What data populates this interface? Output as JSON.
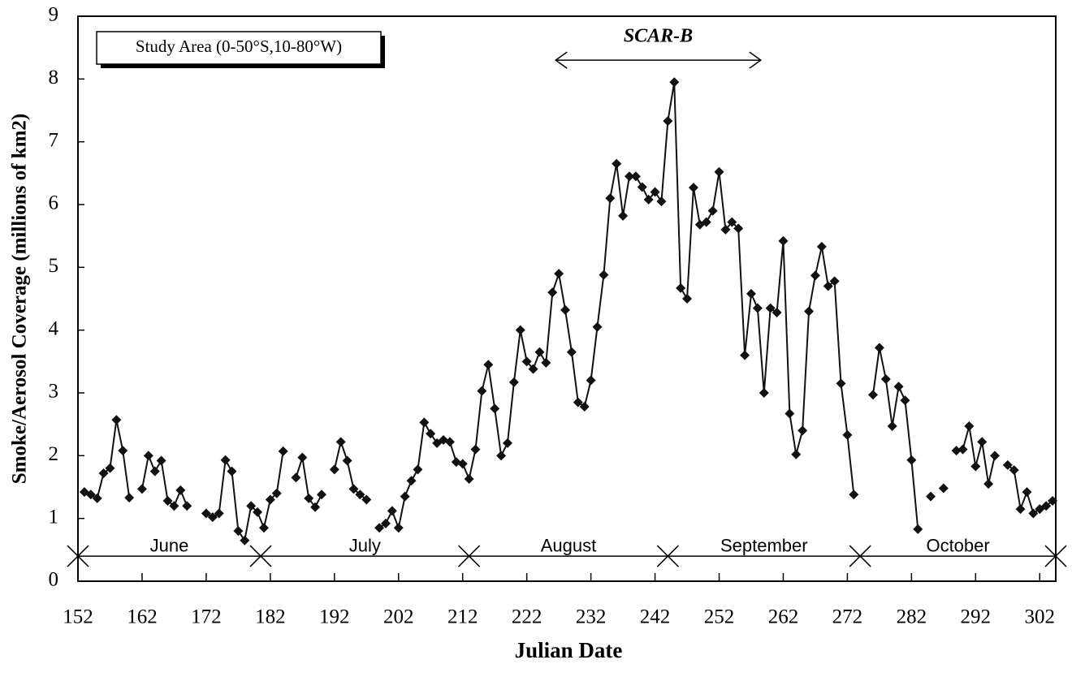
{
  "chart_data": {
    "type": "line",
    "x_label": "Julian Date",
    "y_label": "Smoke/Aerosol Coverage (millions of km2)",
    "inset_label": "Study Area (0-50°S,10-80°W)",
    "color": "#111111",
    "xlim": [
      152,
      304.5
    ],
    "ylim": [
      0,
      9
    ],
    "xticks": [
      152,
      162,
      172,
      182,
      192,
      202,
      212,
      222,
      232,
      242,
      252,
      262,
      272,
      282,
      292,
      302
    ],
    "yticks": [
      0,
      1,
      2,
      3,
      4,
      5,
      6,
      7,
      8,
      9
    ],
    "grid": false,
    "x": [
      153,
      154,
      155,
      156,
      157,
      158,
      159,
      160,
      161,
      162,
      163,
      164,
      165,
      166,
      167,
      168,
      169,
      170,
      171,
      172,
      173,
      174,
      175,
      176,
      177,
      178,
      179,
      180,
      181,
      182,
      183,
      184,
      185,
      186,
      187,
      188,
      189,
      190,
      191,
      192,
      193,
      194,
      195,
      196,
      197,
      198,
      199,
      200,
      201,
      202,
      203,
      204,
      205,
      206,
      207,
      208,
      209,
      210,
      211,
      212,
      213,
      214,
      215,
      216,
      217,
      218,
      219,
      220,
      221,
      222,
      223,
      224,
      225,
      226,
      227,
      228,
      229,
      230,
      231,
      232,
      233,
      234,
      235,
      236,
      237,
      238,
      239,
      240,
      241,
      242,
      243,
      244,
      245,
      246,
      247,
      248,
      249,
      250,
      251,
      252,
      253,
      254,
      255,
      256,
      257,
      258,
      259,
      260,
      261,
      262,
      263,
      264,
      265,
      266,
      267,
      268,
      269,
      270,
      271,
      272,
      273,
      274,
      275,
      276,
      277,
      278,
      279,
      280,
      281,
      282,
      283,
      284,
      285,
      286,
      287,
      288,
      289,
      290,
      291,
      292,
      293,
      294,
      295,
      296,
      297,
      298,
      299,
      300,
      301,
      302,
      303,
      304
    ],
    "values": [
      1.42,
      1.38,
      1.32,
      1.72,
      1.8,
      2.57,
      2.08,
      1.33,
      null,
      1.47,
      2.0,
      1.75,
      1.92,
      1.28,
      1.2,
      1.45,
      1.2,
      null,
      null,
      1.08,
      1.02,
      1.08,
      1.93,
      1.75,
      0.8,
      0.65,
      1.2,
      1.1,
      0.85,
      1.3,
      1.4,
      2.07,
      null,
      1.65,
      1.97,
      1.32,
      1.18,
      1.38,
      null,
      1.78,
      2.22,
      1.92,
      1.47,
      1.38,
      1.3,
      null,
      0.85,
      0.92,
      1.12,
      0.85,
      1.35,
      1.6,
      1.78,
      2.53,
      2.35,
      2.2,
      2.25,
      2.22,
      1.9,
      1.87,
      1.63,
      2.1,
      3.03,
      3.45,
      2.75,
      2.0,
      2.2,
      3.17,
      4.0,
      3.5,
      3.38,
      3.65,
      3.48,
      4.6,
      4.9,
      4.32,
      3.65,
      2.85,
      2.78,
      3.2,
      4.05,
      4.88,
      6.1,
      6.65,
      5.82,
      6.45,
      6.45,
      6.28,
      6.08,
      6.2,
      6.05,
      7.33,
      7.95,
      4.67,
      4.5,
      6.27,
      5.68,
      5.72,
      5.9,
      6.52,
      5.6,
      5.72,
      5.62,
      3.6,
      4.58,
      4.35,
      3.0,
      4.35,
      4.28,
      5.42,
      2.67,
      2.02,
      2.4,
      4.3,
      4.87,
      5.33,
      4.7,
      4.78,
      3.15,
      2.33,
      1.38,
      null,
      null,
      2.97,
      3.72,
      3.22,
      2.47,
      3.1,
      2.88,
      1.93,
      0.83,
      null,
      1.35,
      null,
      1.48,
      null,
      2.08,
      2.1,
      2.47,
      1.83,
      2.22,
      1.55,
      2.0,
      null,
      1.85,
      1.77,
      1.15,
      1.42,
      1.08,
      1.15,
      1.2,
      1.28
    ],
    "months": {
      "labels": [
        "June",
        "July",
        "August",
        "September",
        "October"
      ],
      "bounds": [
        152,
        180.5,
        213,
        244,
        274,
        304.5
      ],
      "y": 0.4,
      "label_y": 0.55
    },
    "annotation": {
      "text": "SCAR-B",
      "x": [
        226.5,
        258.5
      ],
      "y": 8.3
    }
  }
}
